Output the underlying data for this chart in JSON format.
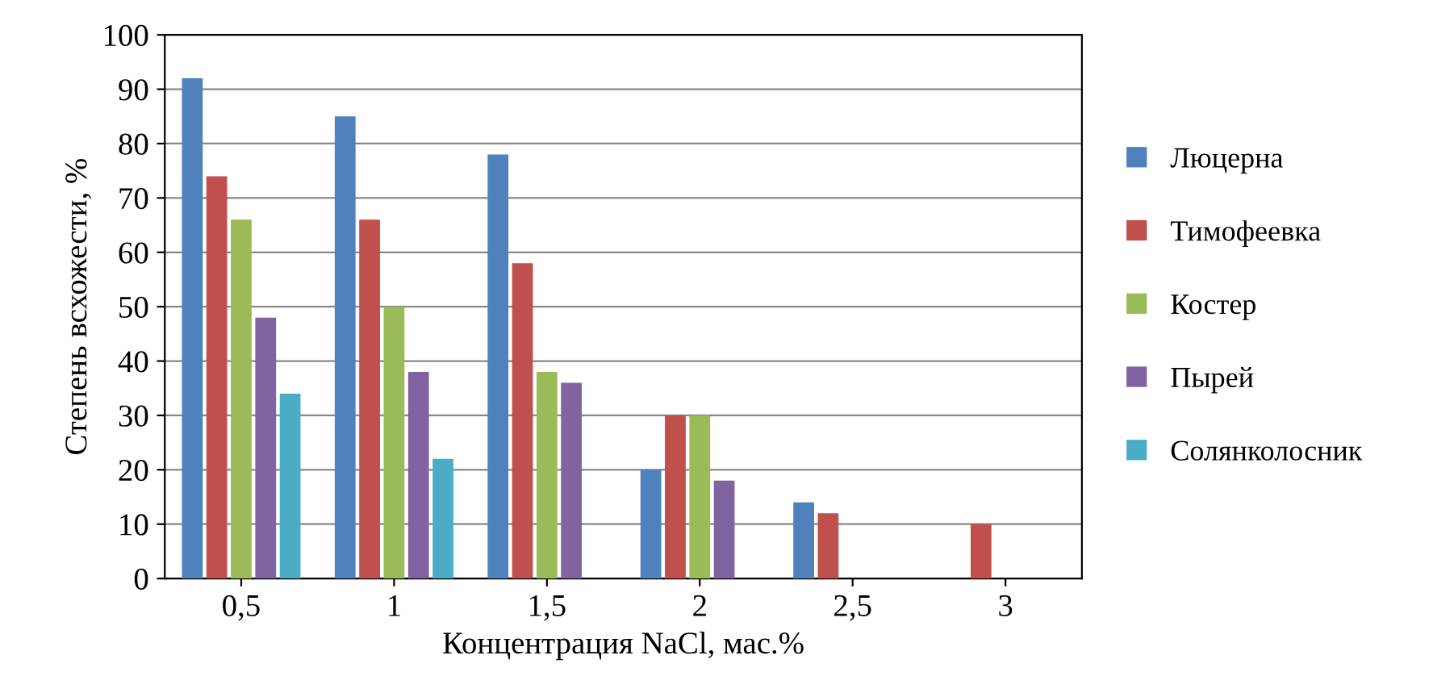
{
  "chart_data": {
    "type": "bar",
    "xlabel": "Концентрация NaCl, мас.%",
    "ylabel": "Степень всхожести, %",
    "categories": [
      "0,5",
      "1",
      "1,5",
      "2",
      "2,5",
      "3"
    ],
    "series": [
      {
        "name": "Люцерна",
        "color": "#4f81bd",
        "values": [
          92,
          85,
          78,
          20,
          14,
          0
        ]
      },
      {
        "name": "Тимофеевка",
        "color": "#c0504d",
        "values": [
          74,
          66,
          58,
          30,
          12,
          10
        ]
      },
      {
        "name": "Костер",
        "color": "#9bbb59",
        "values": [
          66,
          50,
          38,
          30,
          0,
          0
        ]
      },
      {
        "name": "Пырей",
        "color": "#8064a2",
        "values": [
          48,
          38,
          36,
          18,
          0,
          0
        ]
      },
      {
        "name": "Солянколосник",
        "color": "#4bacc6",
        "values": [
          34,
          22,
          0,
          0,
          0,
          0
        ]
      }
    ],
    "ylim": [
      0,
      100
    ],
    "yticks": [
      0,
      10,
      20,
      30,
      40,
      50,
      60,
      70,
      80,
      90,
      100
    ],
    "grid": "y",
    "legend": "right"
  }
}
